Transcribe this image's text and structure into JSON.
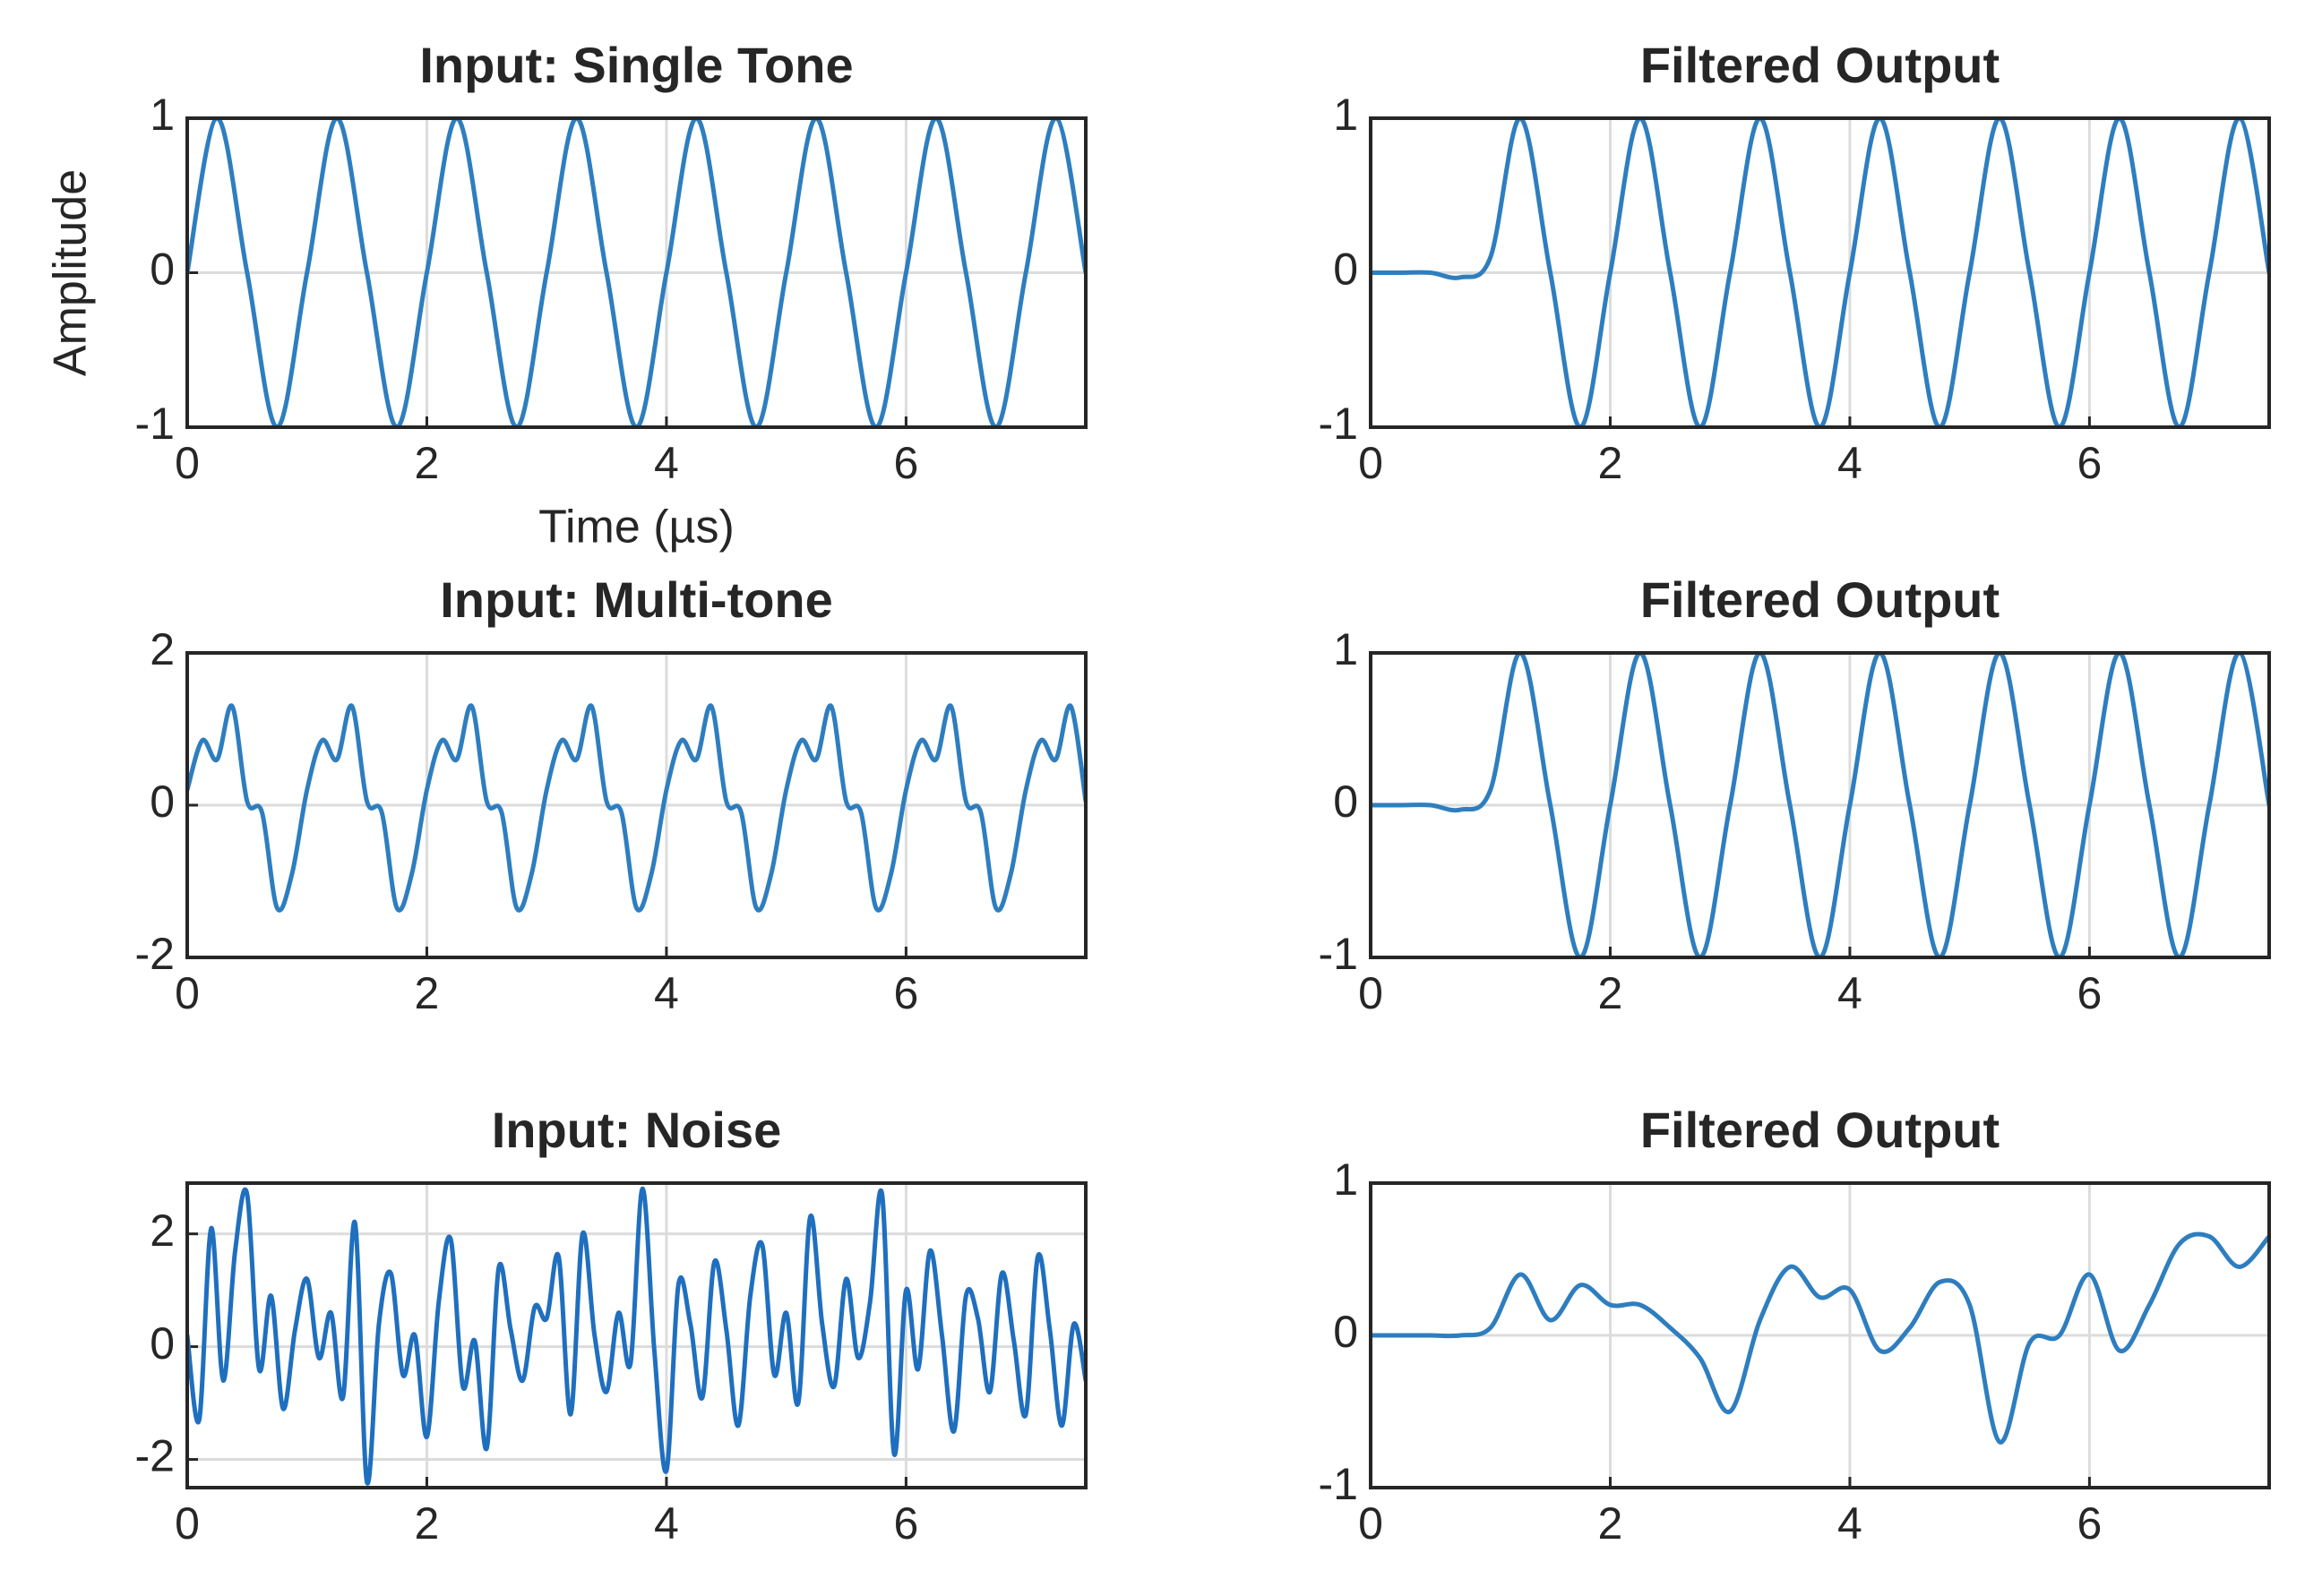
{
  "chart_data": [
    {
      "type": "line",
      "title": "Input: Single Tone",
      "xlabel": "Time (µs)",
      "ylabel": "Amplitude",
      "color": "#2e7ebf",
      "grid": true,
      "xlim": [
        0,
        7.5
      ],
      "ylim": [
        -1,
        1
      ],
      "xticks": [
        0,
        2,
        4,
        6
      ],
      "yticks": [
        -1,
        0,
        1
      ],
      "x": [
        0,
        0.25,
        0.5,
        0.75,
        1,
        1.25,
        1.5,
        1.75,
        2,
        2.25,
        2.5,
        2.75,
        3,
        3.25,
        3.5,
        3.75,
        4,
        4.25,
        4.5,
        4.75,
        5,
        5.25,
        5.5,
        5.75,
        6,
        6.25,
        6.5,
        6.75,
        7,
        7.25,
        7.5
      ],
      "values": [
        0,
        1,
        0,
        -1,
        0,
        1,
        0,
        -1,
        0,
        1,
        0,
        -1,
        0,
        1,
        0,
        -1,
        0,
        1,
        0,
        -1,
        0,
        1,
        0,
        -1,
        0,
        1,
        0,
        -1,
        0,
        1,
        0
      ]
    },
    {
      "type": "line",
      "title": "Filtered Output",
      "color": "#2e7ebf",
      "grid": true,
      "xlim": [
        0,
        7.5
      ],
      "ylim": [
        -1,
        1
      ],
      "xticks": [
        0,
        2,
        4,
        6
      ],
      "yticks": [
        -1,
        0,
        1
      ],
      "x": [
        0,
        0.25,
        0.5,
        0.75,
        1,
        1.25,
        1.5,
        1.75,
        2,
        2.25,
        2.5,
        2.75,
        3,
        3.25,
        3.5,
        3.75,
        4,
        4.25,
        4.5,
        4.75,
        5,
        5.25,
        5.5,
        5.75,
        6,
        6.25,
        6.5,
        6.75,
        7,
        7.25,
        7.5
      ],
      "values": [
        0,
        0,
        0,
        -0.03,
        0.1,
        1,
        0,
        -1,
        0,
        1,
        0,
        -1,
        0,
        1,
        0,
        -1,
        0,
        1,
        0,
        -1,
        0,
        1,
        0,
        -1,
        0,
        1,
        0,
        -1,
        0,
        1,
        0
      ]
    },
    {
      "type": "line",
      "title": "Input: Multi-tone",
      "color": "#2e7ebf",
      "grid": true,
      "xlim": [
        0,
        7.5
      ],
      "ylim": [
        -2,
        2
      ],
      "xticks": [
        0,
        2,
        4,
        6
      ],
      "yticks": [
        -2,
        0,
        2
      ],
      "x": [
        0,
        0.125,
        0.25,
        0.375,
        0.5,
        0.625,
        0.75,
        0.875,
        1,
        1.125,
        1.25,
        1.375,
        1.5,
        1.625,
        1.75,
        1.875,
        2,
        2.125,
        2.25,
        2.375,
        2.5,
        2.625,
        2.75,
        2.875,
        3,
        3.125,
        3.25,
        3.375,
        3.5,
        3.625,
        3.75,
        3.875,
        4,
        4.125,
        4.25,
        4.375,
        4.5,
        4.625,
        4.75,
        4.875,
        5,
        5.125,
        5.25,
        5.375,
        5.5,
        5.625,
        5.75,
        5.875,
        6,
        6.125,
        6.25,
        6.375,
        6.5,
        6.625,
        6.75,
        6.875,
        7,
        7.125,
        7.25,
        7.375,
        7.5
      ],
      "values": [
        0.2,
        0.85,
        0.6,
        1.3,
        0.05,
        -0.1,
        -1.35,
        -0.9,
        0.2,
        0.85,
        0.6,
        1.3,
        0.05,
        -0.1,
        -1.35,
        -0.9,
        0.2,
        0.85,
        0.6,
        1.3,
        0.05,
        -0.1,
        -1.35,
        -0.9,
        0.2,
        0.85,
        0.6,
        1.3,
        0.05,
        -0.1,
        -1.35,
        -0.9,
        0.2,
        0.85,
        0.6,
        1.3,
        0.05,
        -0.1,
        -1.35,
        -0.9,
        0.2,
        0.85,
        0.6,
        1.3,
        0.05,
        -0.1,
        -1.35,
        -0.9,
        0.2,
        0.85,
        0.6,
        1.3,
        0.05,
        -0.1,
        -1.35,
        -0.9,
        0.2,
        0.85,
        0.6,
        1.3,
        0.05
      ]
    },
    {
      "type": "line",
      "title": "Filtered Output",
      "color": "#2e7ebf",
      "grid": true,
      "xlim": [
        0,
        7.5
      ],
      "ylim": [
        -1,
        1
      ],
      "xticks": [
        0,
        2,
        4,
        6
      ],
      "yticks": [
        -1,
        0,
        1
      ],
      "x": [
        0,
        0.25,
        0.5,
        0.75,
        1,
        1.25,
        1.5,
        1.75,
        2,
        2.25,
        2.5,
        2.75,
        3,
        3.25,
        3.5,
        3.75,
        4,
        4.25,
        4.5,
        4.75,
        5,
        5.25,
        5.5,
        5.75,
        6,
        6.25,
        6.5,
        6.75,
        7,
        7.25,
        7.5
      ],
      "values": [
        0,
        0,
        0,
        -0.03,
        0.1,
        1,
        0,
        -1,
        0,
        1,
        0,
        -1,
        0,
        1,
        0,
        -1,
        0,
        1,
        0,
        -1,
        0,
        1,
        0,
        -1,
        0,
        1,
        0,
        -1,
        0,
        1,
        0
      ]
    },
    {
      "type": "line",
      "title": "Input: Noise",
      "color": "#1f6fbf",
      "grid": true,
      "xlim": [
        0,
        7.5
      ],
      "ylim": [
        -2.5,
        2.9
      ],
      "xticks": [
        0,
        2,
        4,
        6
      ],
      "yticks": [
        -2,
        0,
        2
      ],
      "x": [
        0,
        0.1,
        0.2,
        0.3,
        0.4,
        0.5,
        0.6,
        0.7,
        0.8,
        0.9,
        1,
        1.1,
        1.2,
        1.3,
        1.4,
        1.5,
        1.6,
        1.7,
        1.8,
        1.9,
        2,
        2.1,
        2.2,
        2.3,
        2.4,
        2.5,
        2.6,
        2.7,
        2.8,
        2.9,
        3,
        3.1,
        3.2,
        3.3,
        3.4,
        3.5,
        3.6,
        3.7,
        3.8,
        3.9,
        4,
        4.1,
        4.2,
        4.3,
        4.4,
        4.5,
        4.6,
        4.7,
        4.8,
        4.9,
        5,
        5.1,
        5.2,
        5.3,
        5.4,
        5.5,
        5.6,
        5.7,
        5.8,
        5.9,
        6,
        6.1,
        6.2,
        6.3,
        6.4,
        6.5,
        6.6,
        6.7,
        6.8,
        6.9,
        7,
        7.1,
        7.2,
        7.3,
        7.4,
        7.5
      ],
      "values": [
        0.2,
        -1.3,
        2.1,
        -0.6,
        1.7,
        2.7,
        -0.4,
        0.9,
        -1.1,
        0.3,
        1.2,
        -0.2,
        0.6,
        -0.9,
        2.2,
        -2.4,
        0.4,
        1.3,
        -0.5,
        0.2,
        -1.6,
        0.8,
        1.9,
        -0.7,
        0.1,
        -1.8,
        1.4,
        0.3,
        -0.6,
        0.7,
        0.5,
        1.6,
        -1.2,
        2.0,
        0.2,
        -0.8,
        0.6,
        -0.3,
        2.8,
        -0.1,
        -2.2,
        1.1,
        0.4,
        -0.9,
        1.5,
        0.3,
        -1.4,
        0.9,
        1.8,
        -0.5,
        0.6,
        -1.0,
        2.3,
        0.4,
        -0.7,
        1.2,
        -0.2,
        0.8,
        2.7,
        -1.9,
        1.0,
        -0.4,
        1.7,
        0.2,
        -1.5,
        0.9,
        0.5,
        -0.8,
        1.3,
        0.1,
        -1.2,
        1.6,
        0.3,
        -1.4,
        0.4,
        -0.6
      ]
    },
    {
      "type": "line",
      "title": "Filtered Output",
      "color": "#2e7ebf",
      "grid": true,
      "xlim": [
        0,
        7.5
      ],
      "ylim": [
        -1,
        1
      ],
      "xticks": [
        0,
        2,
        4,
        6
      ],
      "yticks": [
        -1,
        0,
        1
      ],
      "x": [
        0,
        0.25,
        0.5,
        0.75,
        1,
        1.25,
        1.5,
        1.75,
        2,
        2.25,
        2.5,
        2.75,
        3,
        3.25,
        3.5,
        3.75,
        4,
        4.25,
        4.5,
        4.75,
        5,
        5.25,
        5.5,
        5.75,
        6,
        6.25,
        6.5,
        6.75,
        7,
        7.25,
        7.5
      ],
      "values": [
        0,
        0,
        0,
        0,
        0.05,
        0.4,
        0.1,
        0.33,
        0.2,
        0.2,
        0.05,
        -0.15,
        -0.5,
        0.1,
        0.45,
        0.25,
        0.3,
        -0.1,
        0.05,
        0.35,
        0.2,
        -0.7,
        -0.05,
        0,
        0.4,
        -0.1,
        0.2,
        0.6,
        0.65,
        0.45,
        0.65
      ]
    }
  ]
}
